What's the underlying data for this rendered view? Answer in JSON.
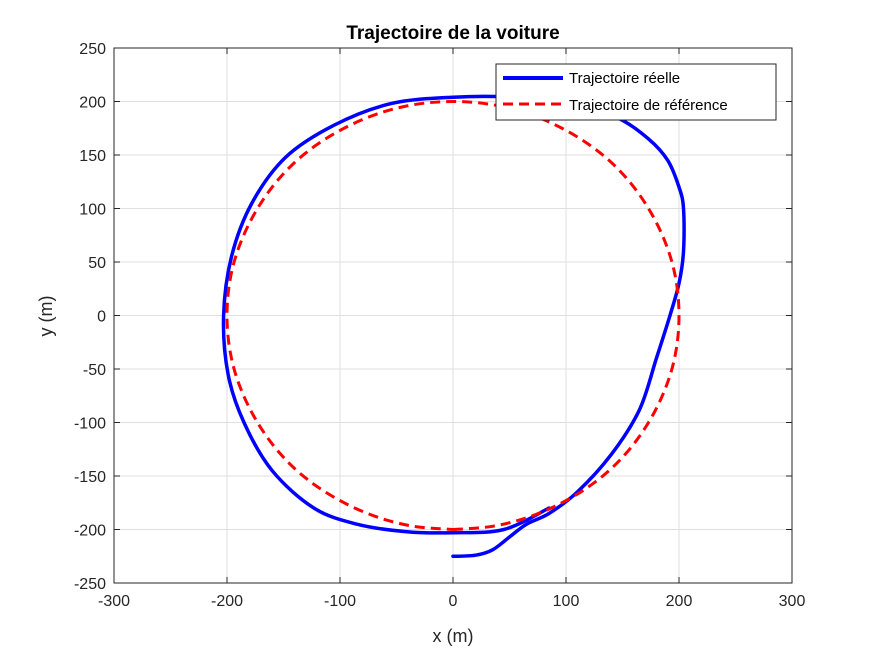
{
  "chart_data": {
    "type": "line",
    "title": "Trajectoire de la voiture",
    "xlabel": "x (m)",
    "ylabel": "y (m)",
    "xlim": [
      -300,
      300
    ],
    "ylim": [
      -250,
      250
    ],
    "xticks": [
      -300,
      -200,
      -100,
      0,
      100,
      200,
      300
    ],
    "yticks": [
      -250,
      -200,
      -150,
      -100,
      -50,
      0,
      50,
      100,
      150,
      200,
      250
    ],
    "xtick_labels": [
      "-300",
      "-200",
      "-100",
      "0",
      "100",
      "200",
      "300"
    ],
    "ytick_labels": [
      "-250",
      "-200",
      "-150",
      "-100",
      "-50",
      "0",
      "50",
      "100",
      "150",
      "200",
      "250"
    ],
    "grid": true,
    "legend_position": "top-right",
    "series": [
      {
        "name": "Trajectoire réelle",
        "color": "#0000ff",
        "style": "solid",
        "x": [
          0,
          20,
          35,
          50,
          65,
          85,
          110,
          140,
          165,
          180,
          192,
          200,
          204,
          204,
          200,
          190,
          173,
          145,
          105,
          55,
          0,
          -55,
          -105,
          -148,
          -178,
          -196,
          -203,
          -199,
          -185,
          -160,
          -123,
          -85,
          -42,
          0,
          45,
          85
        ],
        "y": [
          -225,
          -224,
          -219,
          -207,
          -195,
          -185,
          -165,
          -130,
          -88,
          -40,
          0,
          30,
          60,
          100,
          120,
          145,
          165,
          185,
          198,
          204,
          204,
          198,
          178,
          148,
          105,
          55,
          0,
          -55,
          -100,
          -145,
          -180,
          -195,
          -202,
          -203,
          -200,
          -180
        ]
      },
      {
        "name": "Trajectoire de référence",
        "color": "#ff0000",
        "style": "dashed",
        "x": [
          0,
          35,
          68,
          100,
          129,
          153,
          173,
          188,
          197,
          200,
          197,
          188,
          173,
          153,
          129,
          100,
          68,
          35,
          0,
          -35,
          -68,
          -100,
          -129,
          -153,
          -173,
          -188,
          -197,
          -200,
          -197,
          -188,
          -173,
          -153,
          -129,
          -100,
          -68,
          -35,
          0
        ],
        "y": [
          -200,
          -197,
          -188,
          -173,
          -153,
          -129,
          -100,
          -68,
          -35,
          0,
          35,
          68,
          100,
          129,
          153,
          173,
          188,
          197,
          200,
          197,
          188,
          173,
          153,
          129,
          100,
          68,
          35,
          0,
          -35,
          -68,
          -100,
          -129,
          -153,
          -173,
          -188,
          -197,
          -200
        ]
      }
    ]
  }
}
